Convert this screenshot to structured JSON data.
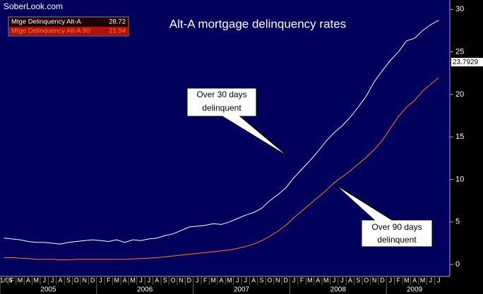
{
  "site": "SoberLook.com",
  "chart_data": {
    "type": "line",
    "title": "Alt-A mortgage delinquency rates",
    "categories": [
      "1/05",
      "F",
      "M",
      "A",
      "M",
      "J",
      "J",
      "A",
      "S",
      "O",
      "N",
      "D",
      "J",
      "F",
      "M",
      "A",
      "M",
      "J",
      "J",
      "A",
      "S",
      "O",
      "N",
      "D",
      "J",
      "F",
      "M",
      "A",
      "M",
      "J",
      "J",
      "A",
      "S",
      "O",
      "N",
      "D",
      "J",
      "F",
      "M",
      "A",
      "M",
      "J",
      "J",
      "A",
      "S",
      "O",
      "N",
      "D",
      "J",
      "F",
      "M",
      "A",
      "M",
      "J",
      "J"
    ],
    "years": [
      "2005",
      "2006",
      "2007",
      "2008",
      "2009"
    ],
    "series": [
      {
        "name": "Mtge Delinquency Alt-A",
        "color": "#ffffff",
        "values": [
          3.1,
          3.0,
          2.9,
          2.7,
          2.6,
          2.6,
          2.5,
          2.4,
          2.6,
          2.7,
          2.8,
          2.9,
          2.8,
          2.7,
          2.9,
          2.6,
          2.9,
          2.8,
          3.0,
          3.1,
          3.4,
          3.6,
          4.0,
          4.4,
          4.5,
          4.6,
          4.8,
          4.7,
          5.0,
          5.4,
          5.8,
          6.1,
          6.6,
          7.5,
          8.2,
          9.0,
          10.2,
          11.2,
          12.2,
          13.3,
          14.5,
          15.5,
          16.3,
          17.3,
          18.5,
          19.8,
          21.5,
          22.8,
          24.0,
          25.0,
          26.3,
          26.6,
          27.5,
          28.2,
          28.72
        ]
      },
      {
        "name": "Mtge Delinquency Alt-A 90",
        "color": "#ff7f1e",
        "values": [
          0.8,
          0.8,
          0.75,
          0.7,
          0.6,
          0.6,
          0.6,
          0.55,
          0.55,
          0.6,
          0.6,
          0.6,
          0.6,
          0.6,
          0.6,
          0.6,
          0.65,
          0.7,
          0.75,
          0.8,
          0.9,
          1.0,
          1.1,
          1.2,
          1.3,
          1.4,
          1.5,
          1.6,
          1.7,
          1.9,
          2.1,
          2.4,
          2.8,
          3.3,
          3.9,
          4.6,
          5.5,
          6.3,
          7.1,
          7.9,
          8.7,
          9.6,
          10.3,
          11.0,
          11.8,
          12.6,
          13.5,
          14.6,
          16.0,
          17.4,
          18.5,
          19.3,
          20.4,
          21.2,
          21.94
        ]
      }
    ],
    "ylim": [
      -1.4,
      31.1
    ],
    "yticks": [
      0,
      5,
      10,
      15,
      20,
      25,
      30
    ],
    "marker": 23.7929,
    "annotations": [
      {
        "lines": [
          "Over 30 days",
          "delinquent"
        ]
      },
      {
        "lines": [
          "Over 90 days",
          "delinquent"
        ]
      }
    ]
  }
}
